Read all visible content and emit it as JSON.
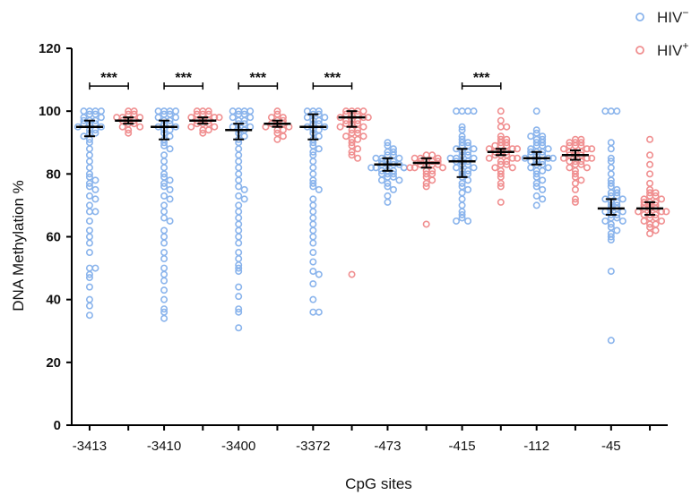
{
  "chart_data": {
    "type": "scatter",
    "title": "",
    "xlabel": "CpG sites",
    "ylabel": "DNA Methylation %",
    "ylim": [
      0,
      120
    ],
    "yticks": [
      0,
      20,
      40,
      60,
      80,
      100,
      120
    ],
    "categories": [
      "-3413",
      "-3410",
      "-3400",
      "-3372",
      "-473",
      "-415",
      "-112",
      "-45"
    ],
    "legend": {
      "position": "top-right"
    },
    "series": [
      {
        "name": "HIV-",
        "name_main": "HIV",
        "name_sup": "−",
        "color": "#8ab4ec",
        "summary": [
          {
            "mean": 95,
            "low": 92,
            "high": 97
          },
          {
            "mean": 95,
            "low": 91,
            "high": 97
          },
          {
            "mean": 94,
            "low": 91,
            "high": 96
          },
          {
            "mean": 95,
            "low": 91,
            "high": 99
          },
          {
            "mean": 83,
            "low": 81,
            "high": 85
          },
          {
            "mean": 84,
            "low": 79,
            "high": 88
          },
          {
            "mean": 85,
            "low": 83,
            "high": 87
          },
          {
            "mean": 69,
            "low": 67,
            "high": 72
          }
        ],
        "values": [
          [
            100,
            100,
            100,
            100,
            99,
            99,
            98,
            98,
            97,
            97,
            97,
            96,
            96,
            96,
            95,
            95,
            94,
            94,
            93,
            93,
            92,
            91,
            90,
            88,
            86,
            84,
            82,
            80,
            79,
            78,
            77,
            76,
            75,
            73,
            72,
            70,
            68,
            68,
            65,
            62,
            60,
            58,
            55,
            50,
            50,
            48,
            47,
            44,
            40,
            38,
            35
          ],
          [
            100,
            100,
            100,
            100,
            99,
            99,
            98,
            98,
            97,
            97,
            96,
            96,
            95,
            95,
            94,
            94,
            93,
            92,
            91,
            90,
            89,
            88,
            86,
            84,
            82,
            80,
            79,
            78,
            77,
            76,
            75,
            73,
            72,
            70,
            68,
            66,
            65,
            62,
            60,
            58,
            55,
            53,
            50,
            48,
            46,
            43,
            40,
            37,
            36,
            34
          ],
          [
            100,
            100,
            100,
            100,
            99,
            99,
            98,
            98,
            97,
            97,
            96,
            96,
            95,
            95,
            94,
            94,
            93,
            92,
            91,
            90,
            88,
            86,
            84,
            82,
            80,
            78,
            76,
            75,
            73,
            72,
            70,
            68,
            66,
            64,
            62,
            60,
            58,
            55,
            53,
            51,
            50,
            49,
            44,
            41,
            37,
            36,
            31
          ],
          [
            100,
            100,
            100,
            99,
            99,
            98,
            98,
            97,
            97,
            96,
            96,
            95,
            95,
            94,
            94,
            93,
            92,
            91,
            90,
            89,
            88,
            87,
            86,
            84,
            82,
            80,
            78,
            77,
            76,
            75,
            72,
            70,
            68,
            66,
            64,
            62,
            60,
            58,
            55,
            52,
            49,
            48,
            45,
            40,
            36,
            36
          ],
          [
            90,
            89,
            88,
            87,
            87,
            86,
            86,
            85,
            85,
            85,
            84,
            84,
            84,
            83,
            83,
            83,
            83,
            82,
            82,
            82,
            82,
            81,
            81,
            81,
            80,
            80,
            80,
            79,
            79,
            78,
            78,
            77,
            76,
            75,
            73,
            71
          ],
          [
            100,
            100,
            100,
            100,
            95,
            94,
            92,
            91,
            90,
            90,
            89,
            89,
            88,
            88,
            87,
            87,
            86,
            86,
            85,
            85,
            85,
            84,
            84,
            84,
            83,
            83,
            82,
            82,
            81,
            81,
            80,
            80,
            79,
            78,
            77,
            76,
            75,
            74,
            72,
            70,
            68,
            67,
            66,
            65,
            65
          ],
          [
            100,
            94,
            93,
            92,
            92,
            91,
            91,
            90,
            90,
            89,
            89,
            88,
            88,
            87,
            87,
            87,
            86,
            86,
            86,
            85,
            85,
            85,
            84,
            84,
            84,
            83,
            83,
            82,
            82,
            81,
            81,
            80,
            79,
            78,
            77,
            76,
            75,
            73,
            72,
            70
          ],
          [
            100,
            100,
            100,
            90,
            88,
            85,
            84,
            82,
            80,
            78,
            77,
            76,
            75,
            74,
            74,
            73,
            73,
            72,
            72,
            71,
            71,
            70,
            70,
            69,
            69,
            68,
            68,
            67,
            67,
            66,
            66,
            65,
            65,
            64,
            63,
            62,
            61,
            60,
            59,
            49,
            27
          ]
        ]
      },
      {
        "name": "HIV+",
        "name_main": "HIV",
        "name_sup": "+",
        "color": "#f08f90",
        "summary": [
          {
            "mean": 97,
            "low": 96,
            "high": 98
          },
          {
            "mean": 97,
            "low": 96,
            "high": 98
          },
          {
            "mean": 96,
            "low": 95,
            "high": 97
          },
          {
            "mean": 98,
            "low": 95,
            "high": 100
          },
          {
            "mean": 83.5,
            "low": 82,
            "high": 85
          },
          {
            "mean": 87,
            "low": 86,
            "high": 88
          },
          {
            "mean": 86,
            "low": 84.5,
            "high": 87.5
          },
          {
            "mean": 69,
            "low": 67,
            "high": 71
          }
        ],
        "values": [
          [
            100,
            100,
            99,
            99,
            98,
            98,
            98,
            97,
            97,
            97,
            96,
            96,
            95,
            95,
            94,
            93
          ],
          [
            100,
            100,
            100,
            99,
            99,
            99,
            98,
            98,
            98,
            97,
            97,
            97,
            96,
            96,
            96,
            95,
            95,
            94,
            94,
            93
          ],
          [
            100,
            99,
            98,
            98,
            97,
            97,
            96,
            96,
            96,
            95,
            95,
            94,
            94,
            93,
            92,
            91
          ],
          [
            100,
            100,
            100,
            100,
            99,
            99,
            99,
            98,
            98,
            98,
            97,
            97,
            97,
            96,
            96,
            96,
            95,
            95,
            94,
            94,
            93,
            93,
            92,
            92,
            91,
            91,
            90,
            89,
            88,
            87,
            86,
            85,
            48
          ],
          [
            86,
            86,
            85,
            85,
            85,
            84,
            84,
            84,
            84,
            83,
            83,
            83,
            83,
            82,
            82,
            82,
            81,
            81,
            80,
            80,
            79,
            78,
            77,
            76,
            64
          ],
          [
            100,
            97,
            95,
            95,
            92,
            91,
            91,
            90,
            90,
            89,
            89,
            89,
            88,
            88,
            88,
            87,
            87,
            87,
            86,
            86,
            86,
            85,
            85,
            85,
            84,
            84,
            83,
            83,
            82,
            82,
            81,
            80,
            79,
            77,
            76,
            71
          ],
          [
            91,
            91,
            90,
            90,
            90,
            89,
            89,
            89,
            88,
            88,
            88,
            87,
            87,
            87,
            86,
            86,
            86,
            85,
            85,
            85,
            84,
            84,
            84,
            83,
            83,
            82,
            82,
            81,
            80,
            79,
            78,
            77,
            75,
            72,
            71
          ],
          [
            91,
            86,
            83,
            80,
            77,
            75,
            74,
            74,
            73,
            73,
            72,
            72,
            71,
            71,
            71,
            70,
            70,
            70,
            69,
            69,
            69,
            68,
            68,
            68,
            67,
            67,
            67,
            66,
            66,
            65,
            65,
            64,
            64,
            63,
            62,
            61
          ]
        ]
      }
    ],
    "significance": [
      {
        "category_index": 0,
        "label": "***"
      },
      {
        "category_index": 1,
        "label": "***"
      },
      {
        "category_index": 2,
        "label": "***"
      },
      {
        "category_index": 3,
        "label": "***"
      },
      {
        "category_index": 5,
        "label": "***"
      }
    ]
  }
}
